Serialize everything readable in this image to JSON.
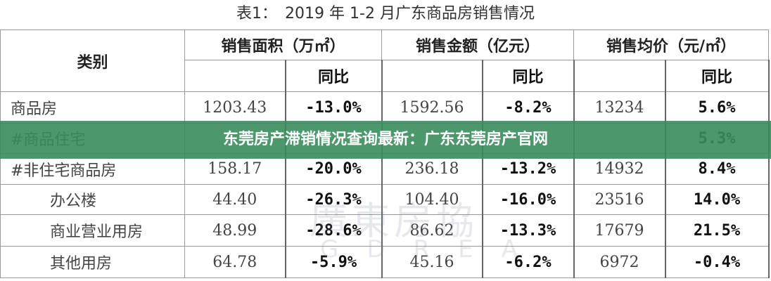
{
  "title": "表1：　2019 年 1-2 月广东商品房销售情况",
  "header": {
    "category": "类别",
    "area": "销售面积（万㎡）",
    "amount": "销售金额（亿元）",
    "price": "销售均价（元/㎡）",
    "yoy": "同比"
  },
  "rows": [
    {
      "category": "商品房",
      "area": "1203.43",
      "area_yoy": "-13.0%",
      "amount": "1592.56",
      "amount_yoy": "-8.2%",
      "price": "13234",
      "price_yoy": "5.6%"
    },
    {
      "category": "#商品住宅",
      "price_yoy": "5.3%"
    },
    {
      "category": "#非住宅商品房",
      "area": "158.17",
      "area_yoy": "-20.0%",
      "amount": "236.18",
      "amount_yoy": "-13.2%",
      "price": "14932",
      "price_yoy": "8.4%"
    },
    {
      "category": "办公楼",
      "area": "44.40",
      "area_yoy": "-26.3%",
      "amount": "104.40",
      "amount_yoy": "-16.0%",
      "price": "23516",
      "price_yoy": "14.0%"
    },
    {
      "category": "商业营业用房",
      "area": "48.99",
      "area_yoy": "-28.6%",
      "amount": "86.62",
      "amount_yoy": "-13.3%",
      "price": "17679",
      "price_yoy": "21.5%"
    },
    {
      "category": "其他用房",
      "area": "64.78",
      "area_yoy": "-5.9%",
      "amount": "45.16",
      "amount_yoy": "-6.2%",
      "price": "6972",
      "price_yoy": "-0.4%"
    }
  ],
  "watermark": [
    "廣東房協",
    "GDREA"
  ],
  "banner": "东莞房产滞销情况查询最新：广东东莞房产官网"
}
